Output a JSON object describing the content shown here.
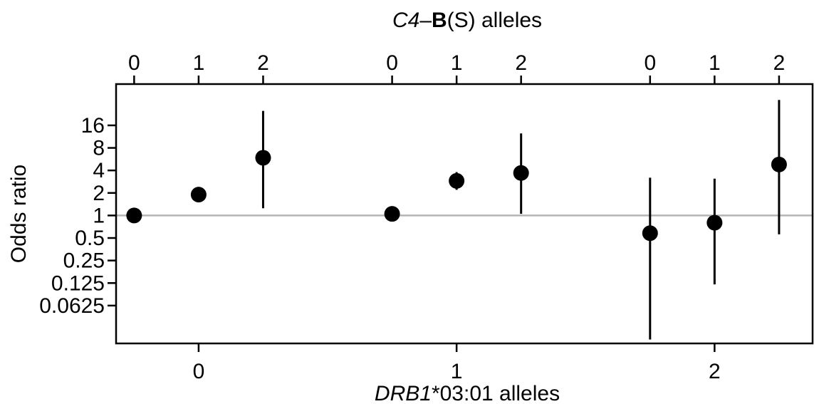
{
  "chart_data": {
    "type": "scatter",
    "title": "",
    "top_axis": {
      "label_italic": "C4",
      "label_dash": "–",
      "label_bold": "B",
      "label_rest": "(S) alleles",
      "tick_labels": [
        "0",
        "1",
        "2",
        "0",
        "1",
        "2",
        "0",
        "1",
        "2"
      ]
    },
    "bottom_axis": {
      "label_italic": "DRB1",
      "label_rest": "*03:01 alleles",
      "tick_labels": [
        "0",
        "1",
        "2"
      ],
      "range": [
        -0.32,
        2.38
      ]
    },
    "y_axis": {
      "label": "Odds ratio",
      "scale": "log2",
      "range": [
        0.0195,
        57
      ],
      "ticks": [
        0.0625,
        0.125,
        0.25,
        0.5,
        1,
        2,
        4,
        8,
        16
      ],
      "tick_labels": [
        "0.0625",
        "0.125",
        "0.25",
        "0.5",
        "1",
        "2",
        "4",
        "8",
        "16"
      ]
    },
    "reference_line": 1,
    "grid": false,
    "points": [
      {
        "drb1": 0,
        "c4b": 0,
        "x": -0.25,
        "or": 1.0,
        "lo": null,
        "hi": null
      },
      {
        "drb1": 0,
        "c4b": 1,
        "x": 0.0,
        "or": 1.9,
        "lo": 1.65,
        "hi": 2.2
      },
      {
        "drb1": 0,
        "c4b": 2,
        "x": 0.25,
        "or": 5.9,
        "lo": 1.25,
        "hi": 25
      },
      {
        "drb1": 1,
        "c4b": 0,
        "x": 0.75,
        "or": 1.05,
        "lo": 0.92,
        "hi": 1.18
      },
      {
        "drb1": 1,
        "c4b": 1,
        "x": 1.0,
        "or": 2.9,
        "lo": 2.2,
        "hi": 3.8
      },
      {
        "drb1": 1,
        "c4b": 2,
        "x": 1.25,
        "or": 3.7,
        "lo": 1.05,
        "hi": 12.5
      },
      {
        "drb1": 2,
        "c4b": 0,
        "x": 1.75,
        "or": 0.58,
        "lo": 0.022,
        "hi": 3.2
      },
      {
        "drb1": 2,
        "c4b": 1,
        "x": 2.0,
        "or": 0.8,
        "lo": 0.12,
        "hi": 3.1
      },
      {
        "drb1": 2,
        "c4b": 2,
        "x": 2.25,
        "or": 4.8,
        "lo": 0.56,
        "hi": 35
      }
    ]
  }
}
